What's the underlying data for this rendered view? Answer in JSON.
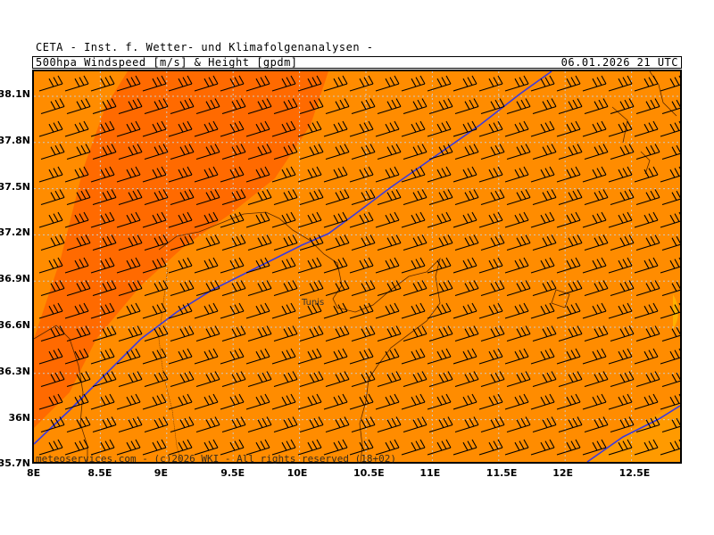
{
  "header": {
    "institute": "CETA - Inst. f. Wetter- und Klimafolgenanalysen -",
    "product": "500hpa_Windspeed_[m/s]_&_Height_[gpdm]",
    "valid_time": "06.01.2026 21 UTC"
  },
  "map": {
    "background_color": "#ff8c00",
    "jet_core_color": "#ff6a00",
    "weak_area_color": "#ffa000",
    "height_line_color": "#3a3ae0",
    "wind_barb_color": "#000000",
    "city_label": "Tunis",
    "copyright": "meteoservices.com - (c)2026 WKI - All rights reserved (18+02)"
  },
  "axes": {
    "lat_labels": [
      "38.1N",
      "37.8N",
      "37.5N",
      "37.2N",
      "36.9N",
      "36.6N",
      "36.3N",
      "36N",
      "35.7N"
    ],
    "lon_labels": [
      "8E",
      "8.5E",
      "9E",
      "9.5E",
      "10E",
      "10.5E",
      "11E",
      "11.5E",
      "12E",
      "12.5E"
    ]
  }
}
